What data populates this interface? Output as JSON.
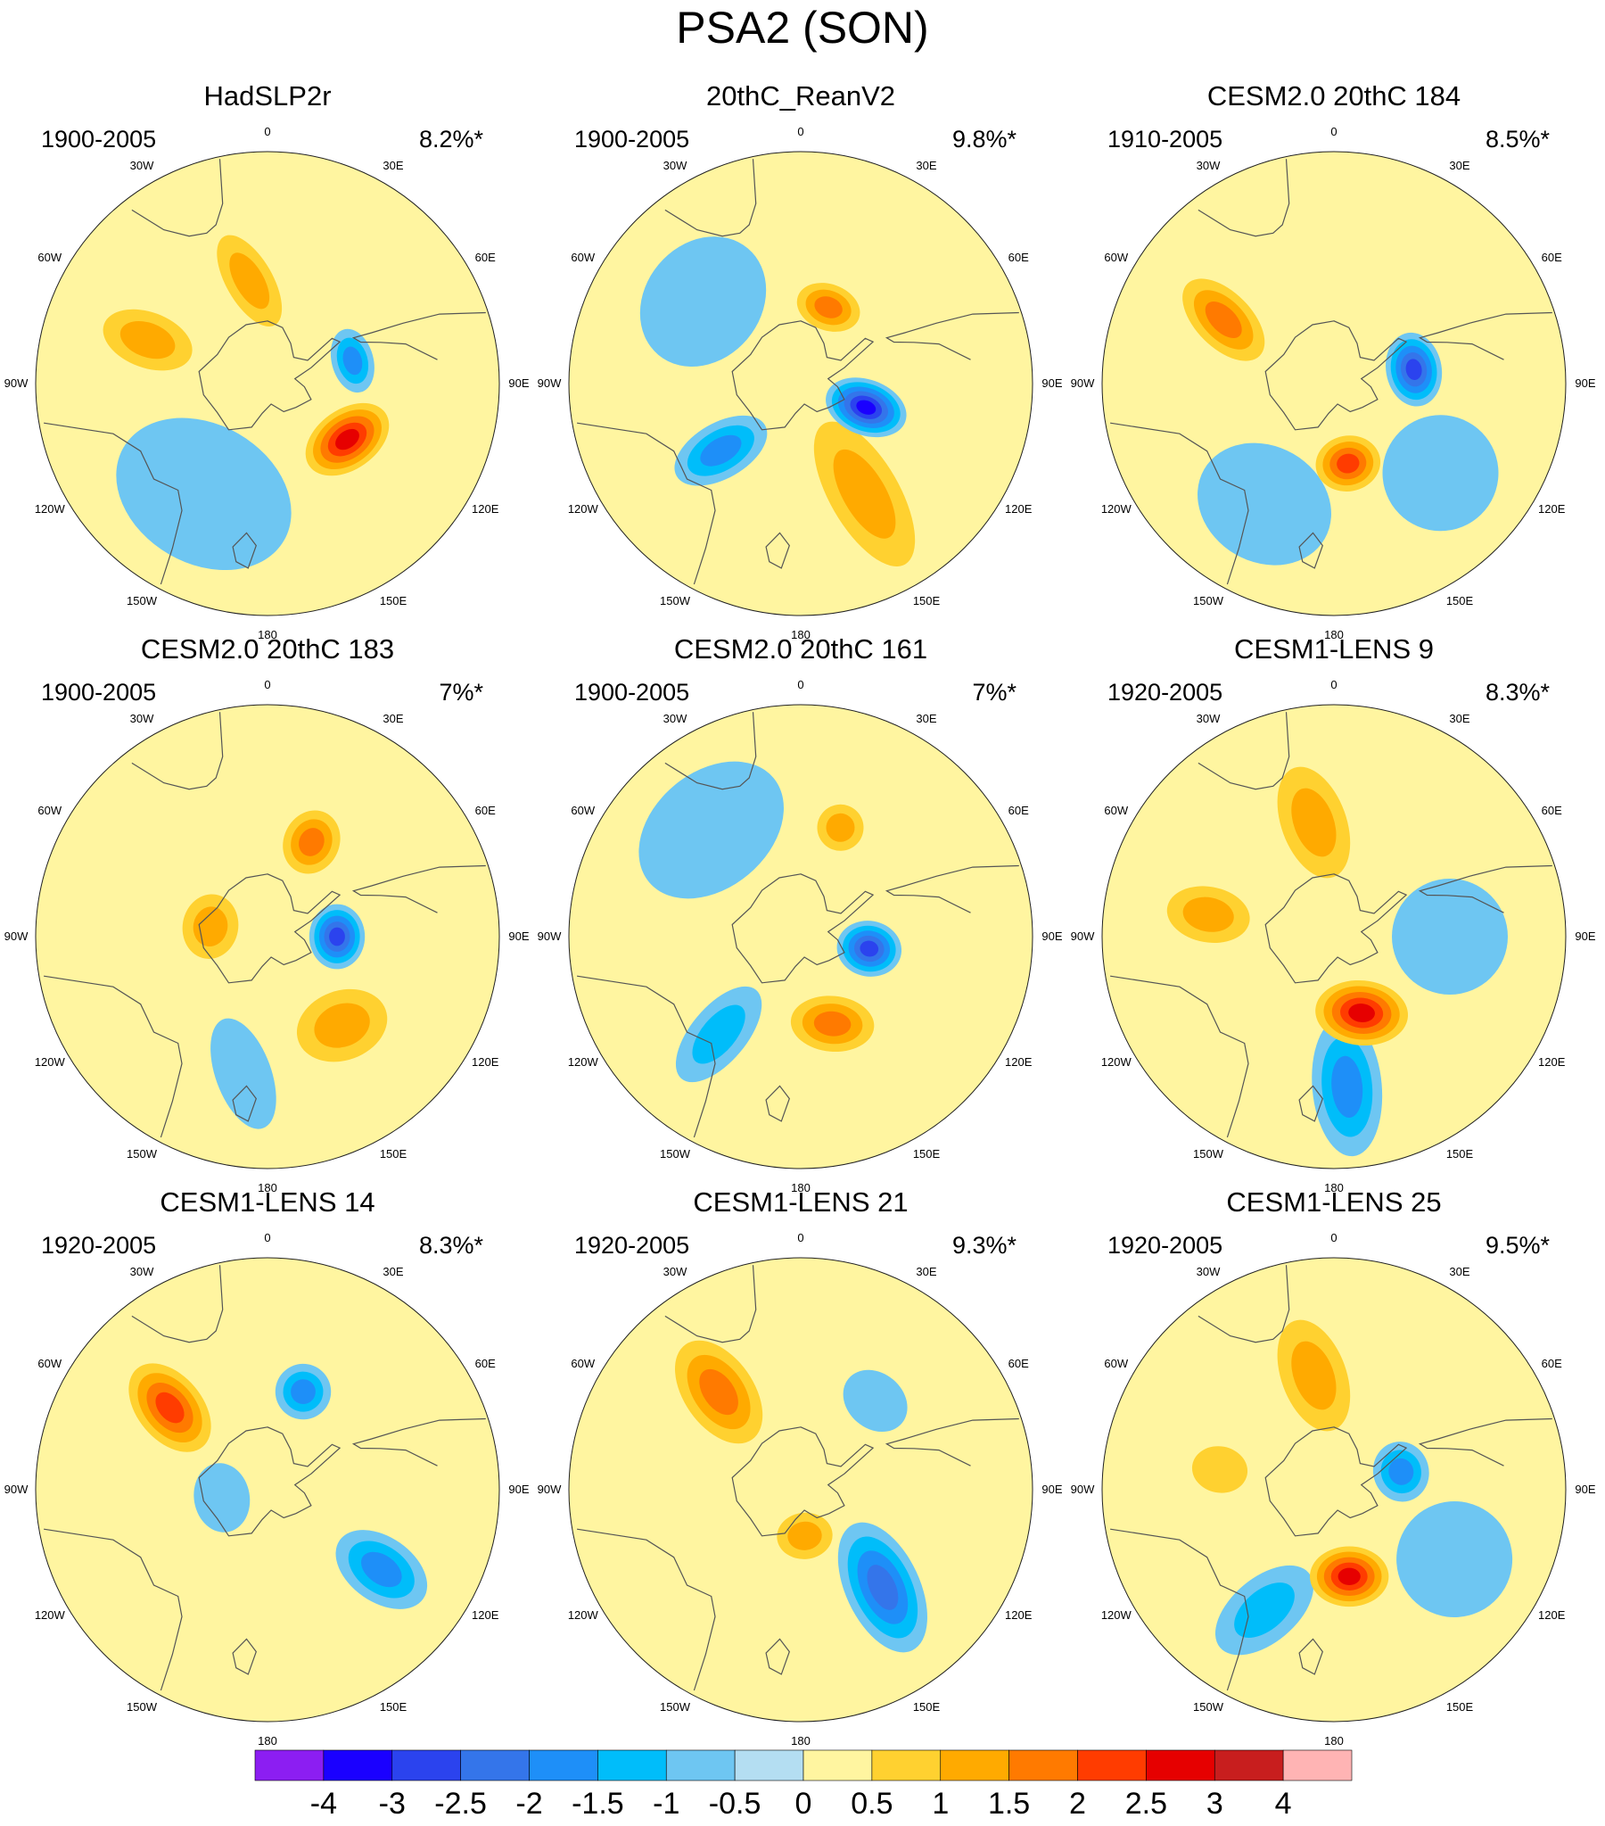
{
  "title": "PSA2 (SON)",
  "colors": {
    "levels": [
      "#8c1ef2",
      "#1a00ff",
      "#2b43ee",
      "#3475ea",
      "#1e8ff8",
      "#00bdfa",
      "#6ec6f2",
      "#b4def2",
      "#fff5a0",
      "#ffd130",
      "#ffaa00",
      "#ff7a00",
      "#ff3c00",
      "#e60000",
      "#c81e1e",
      "#ffb4b4"
    ],
    "coastline": "#555555",
    "boundary": "#222222"
  },
  "colorbar": {
    "labels": [
      "-4",
      "-3",
      "-2.5",
      "-2",
      "-1.5",
      "-1",
      "-0.5",
      "0",
      "0.5",
      "1",
      "1.5",
      "2",
      "2.5",
      "3",
      "4"
    ]
  },
  "lon_labels": [
    "0",
    "30E",
    "60E",
    "90E",
    "120E",
    "150E",
    "180",
    "150W",
    "120W",
    "90W",
    "60W",
    "30W"
  ],
  "panels": [
    {
      "name": "HadSLP2r",
      "period": "1900-2005",
      "pct": "8.2%*",
      "features": [
        {
          "type": "blob",
          "lon": -75,
          "r": 0.38,
          "sa": 0.14,
          "sb": 0.09,
          "rot": 0,
          "v": -1.6
        },
        {
          "type": "blob",
          "lon": -125,
          "r": 0.42,
          "sa": 0.2,
          "sb": 0.13,
          "rot": 20,
          "v": 2.6
        },
        {
          "type": "blob",
          "lon": 70,
          "r": 0.55,
          "sa": 0.12,
          "sb": 0.2,
          "rot": 0,
          "v": 1.2
        },
        {
          "type": "blob",
          "lon": 10,
          "r": 0.45,
          "sa": 0.22,
          "sb": 0.1,
          "rot": 70,
          "v": 1.1
        },
        {
          "type": "blob",
          "lon": 150,
          "r": 0.55,
          "sa": 0.4,
          "sb": 0.3,
          "rot": 0,
          "v": -0.5
        },
        {
          "type": "blob",
          "lon": -175,
          "r": 0.8,
          "sa": 0.3,
          "sb": 0.3,
          "rot": 0,
          "v": -0.4
        }
      ]
    },
    {
      "name": "20thC_ReanV2",
      "period": "1900-2005",
      "pct": "9.8%*",
      "features": [
        {
          "type": "blob",
          "lon": -110,
          "r": 0.3,
          "sa": 0.12,
          "sb": 0.18,
          "rot": 0,
          "v": -3.2
        },
        {
          "type": "blob",
          "lon": -150,
          "r": 0.55,
          "sa": 0.15,
          "sb": 0.35,
          "rot": 0,
          "v": 1.0
        },
        {
          "type": "blob",
          "lon": -20,
          "r": 0.35,
          "sa": 0.14,
          "sb": 0.1,
          "rot": 0,
          "v": 1.7
        },
        {
          "type": "blob",
          "lon": 130,
          "r": 0.45,
          "sa": 0.12,
          "sb": 0.22,
          "rot": 10,
          "v": -1.9
        },
        {
          "type": "blob",
          "lon": 50,
          "r": 0.55,
          "sa": 0.3,
          "sb": 0.25,
          "rot": 0,
          "v": -0.5
        },
        {
          "type": "blob",
          "lon": -60,
          "r": 0.75,
          "sa": 0.3,
          "sb": 0.3,
          "rot": 0,
          "v": 0.3
        }
      ]
    },
    {
      "name": "CESM2.0 20thC 184",
      "period": "1910-2005",
      "pct": "8.5%*",
      "features": [
        {
          "type": "blob",
          "lon": -80,
          "r": 0.35,
          "sa": 0.16,
          "sb": 0.12,
          "rot": 0,
          "v": -2.6
        },
        {
          "type": "blob",
          "lon": -170,
          "r": 0.35,
          "sa": 0.14,
          "sb": 0.12,
          "rot": 0,
          "v": 2.2
        },
        {
          "type": "blob",
          "lon": 60,
          "r": 0.55,
          "sa": 0.12,
          "sb": 0.22,
          "rot": 15,
          "v": 1.6
        },
        {
          "type": "blob",
          "lon": 150,
          "r": 0.6,
          "sa": 0.3,
          "sb": 0.25,
          "rot": 0,
          "v": -0.8
        },
        {
          "type": "blob",
          "lon": -130,
          "r": 0.6,
          "sa": 0.25,
          "sb": 0.25,
          "rot": 0,
          "v": -0.7
        },
        {
          "type": "blob",
          "lon": 10,
          "r": 0.75,
          "sa": 0.25,
          "sb": 0.25,
          "rot": 0,
          "v": -0.4
        }
      ]
    },
    {
      "name": "CESM2.0 20thC 183",
      "period": "1900-2005",
      "pct": "7%*",
      "features": [
        {
          "type": "blob",
          "lon": -90,
          "r": 0.3,
          "sa": 0.14,
          "sb": 0.12,
          "rot": 0,
          "v": -2.6
        },
        {
          "type": "blob",
          "lon": -25,
          "r": 0.45,
          "sa": 0.12,
          "sb": 0.14,
          "rot": 0,
          "v": 1.8
        },
        {
          "type": "blob",
          "lon": -140,
          "r": 0.5,
          "sa": 0.2,
          "sb": 0.15,
          "rot": 20,
          "v": 1.3
        },
        {
          "type": "blob",
          "lon": 80,
          "r": 0.25,
          "sa": 0.14,
          "sb": 0.12,
          "rot": 0,
          "v": 1.2
        },
        {
          "type": "blob",
          "lon": 170,
          "r": 0.6,
          "sa": 0.25,
          "sb": 0.12,
          "rot": 60,
          "v": -0.8
        },
        {
          "type": "blob",
          "lon": 90,
          "r": 0.75,
          "sa": 0.25,
          "sb": 0.25,
          "rot": 0,
          "v": -0.4
        }
      ]
    },
    {
      "name": "CESM2.0 20thC 161",
      "period": "1900-2005",
      "pct": "7%*",
      "features": [
        {
          "type": "blob",
          "lon": -100,
          "r": 0.3,
          "sa": 0.12,
          "sb": 0.14,
          "rot": 0,
          "v": -2.9
        },
        {
          "type": "blob",
          "lon": -160,
          "r": 0.4,
          "sa": 0.18,
          "sb": 0.12,
          "rot": 25,
          "v": 1.9
        },
        {
          "type": "blob",
          "lon": -20,
          "r": 0.5,
          "sa": 0.1,
          "sb": 0.1,
          "rot": 0,
          "v": 1.0
        },
        {
          "type": "blob",
          "lon": 140,
          "r": 0.55,
          "sa": 0.12,
          "sb": 0.25,
          "rot": 0,
          "v": -1.0
        },
        {
          "type": "blob",
          "lon": 40,
          "r": 0.6,
          "sa": 0.35,
          "sb": 0.25,
          "rot": 0,
          "v": -0.5
        }
      ]
    },
    {
      "name": "CESM1-LENS 9",
      "period": "1920-2005",
      "pct": "8.3%*",
      "features": [
        {
          "type": "blob",
          "lon": -160,
          "r": 0.35,
          "sa": 0.2,
          "sb": 0.14,
          "rot": 25,
          "v": 2.9
        },
        {
          "type": "blob",
          "lon": -175,
          "r": 0.65,
          "sa": 0.15,
          "sb": 0.3,
          "rot": 0,
          "v": -1.5
        },
        {
          "type": "blob",
          "lon": 10,
          "r": 0.5,
          "sa": 0.25,
          "sb": 0.14,
          "rot": 80,
          "v": 1.3
        },
        {
          "type": "blob",
          "lon": 80,
          "r": 0.55,
          "sa": 0.12,
          "sb": 0.18,
          "rot": 0,
          "v": 1.3
        },
        {
          "type": "blob",
          "lon": -90,
          "r": 0.5,
          "sa": 0.25,
          "sb": 0.25,
          "rot": 0,
          "v": -0.8
        }
      ]
    },
    {
      "name": "CESM1-LENS 14",
      "period": "1920-2005",
      "pct": "8.3%*",
      "features": [
        {
          "type": "blob",
          "lon": -20,
          "r": 0.45,
          "sa": 0.12,
          "sb": 0.12,
          "rot": 0,
          "v": -1.7
        },
        {
          "type": "blob",
          "lon": 50,
          "r": 0.55,
          "sa": 0.14,
          "sb": 0.22,
          "rot": 10,
          "v": 2.2
        },
        {
          "type": "blob",
          "lon": -125,
          "r": 0.6,
          "sa": 0.14,
          "sb": 0.22,
          "rot": 0,
          "v": -1.7
        },
        {
          "type": "blob",
          "lon": 100,
          "r": 0.2,
          "sa": 0.15,
          "sb": 0.12,
          "rot": 0,
          "v": -0.7
        },
        {
          "type": "blob",
          "lon": 170,
          "r": 0.55,
          "sa": 0.25,
          "sb": 0.25,
          "rot": 0,
          "v": 0.4
        }
      ]
    },
    {
      "name": "CESM1-LENS 21",
      "period": "1920-2005",
      "pct": "9.3%*",
      "features": [
        {
          "type": "blob",
          "lon": -140,
          "r": 0.55,
          "sa": 0.16,
          "sb": 0.3,
          "rot": 15,
          "v": -2.2
        },
        {
          "type": "blob",
          "lon": 40,
          "r": 0.55,
          "sa": 0.15,
          "sb": 0.25,
          "rot": 5,
          "v": 1.9
        },
        {
          "type": "blob",
          "lon": -175,
          "r": 0.2,
          "sa": 0.12,
          "sb": 0.1,
          "rot": 0,
          "v": 1.0
        },
        {
          "type": "blob",
          "lon": -40,
          "r": 0.5,
          "sa": 0.15,
          "sb": 0.12,
          "rot": 0,
          "v": -0.8
        },
        {
          "type": "blob",
          "lon": 100,
          "r": 0.75,
          "sa": 0.3,
          "sb": 0.25,
          "rot": 0,
          "v": -0.4
        }
      ]
    },
    {
      "name": "CESM1-LENS 25",
      "period": "1920-2005",
      "pct": "9.5%*",
      "features": [
        {
          "type": "blob",
          "lon": -75,
          "r": 0.3,
          "sa": 0.13,
          "sb": 0.12,
          "rot": 0,
          "v": -1.6
        },
        {
          "type": "blob",
          "lon": -170,
          "r": 0.38,
          "sa": 0.17,
          "sb": 0.13,
          "rot": 10,
          "v": 2.5
        },
        {
          "type": "blob",
          "lon": 10,
          "r": 0.5,
          "sa": 0.25,
          "sb": 0.14,
          "rot": 80,
          "v": 1.2
        },
        {
          "type": "blob",
          "lon": 80,
          "r": 0.5,
          "sa": 0.1,
          "sb": 0.12,
          "rot": 0,
          "v": 0.8
        },
        {
          "type": "blob",
          "lon": 150,
          "r": 0.6,
          "sa": 0.14,
          "sb": 0.25,
          "rot": 20,
          "v": -1.0
        },
        {
          "type": "blob",
          "lon": -120,
          "r": 0.6,
          "sa": 0.25,
          "sb": 0.25,
          "rot": 0,
          "v": -0.7
        }
      ]
    }
  ]
}
